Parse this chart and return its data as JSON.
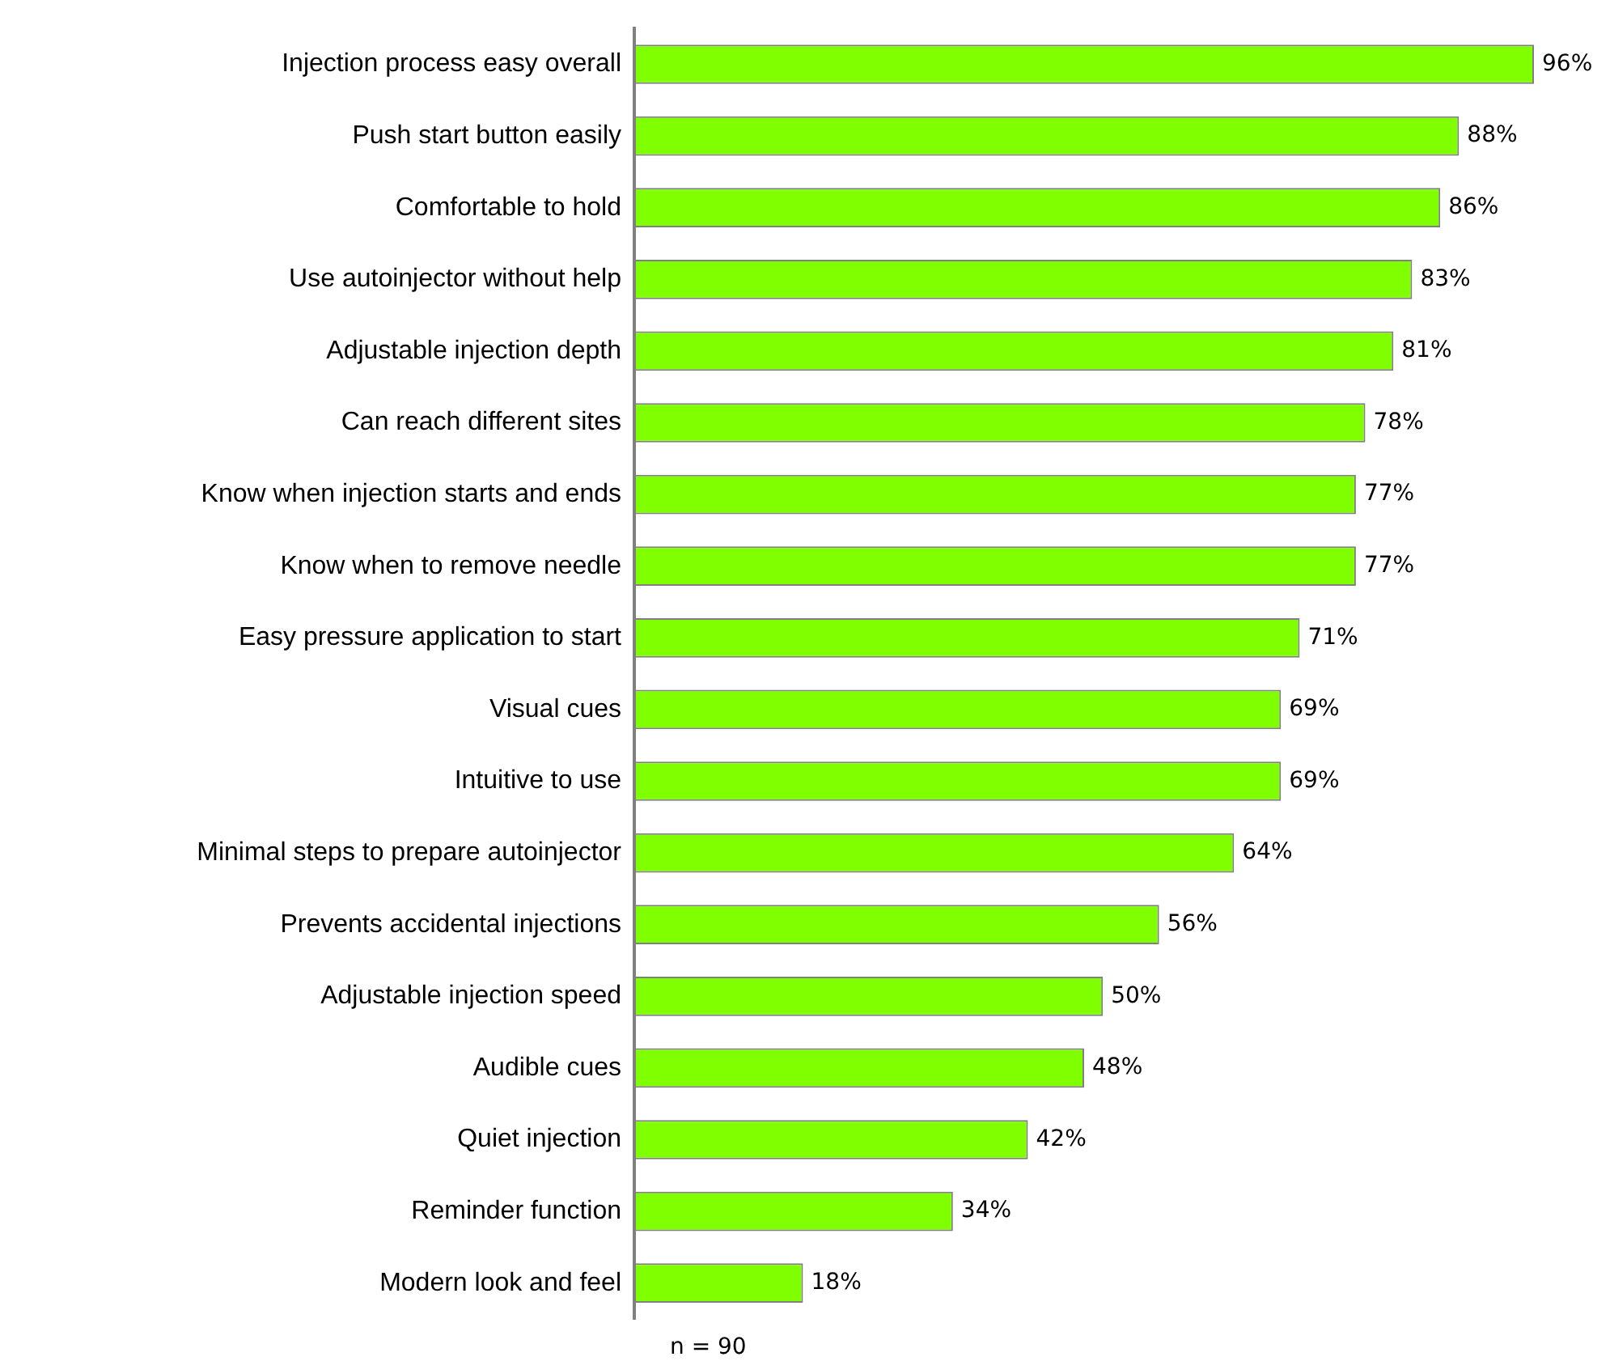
{
  "chart_data": {
    "type": "bar",
    "orientation": "horizontal",
    "categories": [
      "Injection process easy overall",
      "Push start button easily",
      "Comfortable to hold",
      "Use autoinjector without help",
      "Adjustable injection depth",
      "Can reach different sites",
      "Know when injection starts and ends",
      "Know when to remove needle",
      "Easy pressure application to start",
      "Visual cues",
      "Intuitive to use",
      "Minimal steps to prepare autoinjector",
      "Prevents accidental injections",
      "Adjustable injection speed",
      "Audible cues",
      "Quiet injection",
      "Reminder function",
      "Modern look and feel"
    ],
    "values": [
      96,
      88,
      86,
      83,
      81,
      78,
      77,
      77,
      71,
      69,
      69,
      64,
      56,
      50,
      48,
      42,
      34,
      18
    ],
    "value_labels": [
      "96%",
      "88%",
      "86%",
      "83%",
      "81%",
      "78%",
      "77%",
      "77%",
      "71%",
      "69%",
      "69%",
      "64%",
      "56%",
      "50%",
      "48%",
      "42%",
      "34%",
      "18%"
    ],
    "color": "#80ff00",
    "annotations": [
      "n = 90"
    ],
    "legend": false
  }
}
